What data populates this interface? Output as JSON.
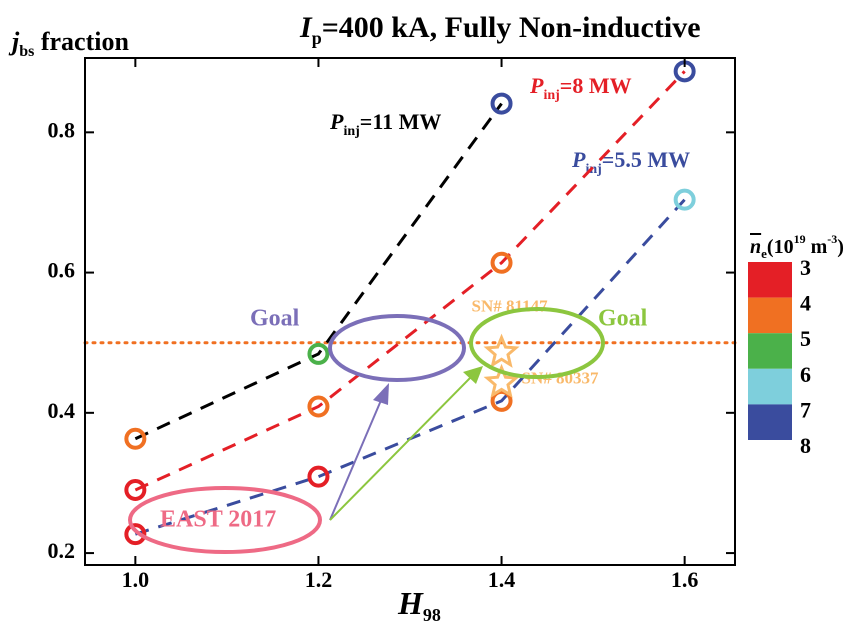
{
  "chart_data": {
    "type": "line",
    "title": [
      "I",
      "p",
      "=400 kA, Fully Non-inductive"
    ],
    "ylabel": [
      "j",
      "bs",
      " fraction"
    ],
    "xlabel": [
      "H",
      "98"
    ],
    "xlim": [
      0.945,
      1.655
    ],
    "ylim": [
      0.183,
      0.906
    ],
    "xticks": [
      {
        "value": 1,
        "label": "1.0"
      },
      {
        "value": 1.2,
        "label": "1.2"
      },
      {
        "value": 1.4,
        "label": "1.4"
      },
      {
        "value": 1.6,
        "label": "1.6"
      }
    ],
    "yticks": [
      0.2,
      0.4,
      0.6,
      0.8
    ],
    "hline": {
      "value": 0.5,
      "color": "#f07022"
    },
    "series": [
      {
        "label": [
          "P",
          "inj",
          "=11 MW"
        ],
        "color": "#000000",
        "x": [
          1.0,
          1.2,
          1.4
        ],
        "values": [
          0.363,
          0.484,
          0.841
        ],
        "marker_colors": [
          "#f07022",
          "#4bb14a",
          "#3a4c9e"
        ]
      },
      {
        "label": [
          "P",
          "inj",
          "=8 MW"
        ],
        "color": "#e41f26",
        "x": [
          1.0,
          1.2,
          1.4,
          1.6
        ],
        "values": [
          0.29,
          0.409,
          0.614,
          0.887
        ],
        "marker_colors": [
          "#e41f26",
          "#f07022",
          "#f07022",
          "#3a4c9e"
        ]
      },
      {
        "label": [
          "P",
          "inj",
          "=5.5 MW"
        ],
        "color": "#3a4c9e",
        "x": [
          1.0,
          1.2,
          1.4,
          1.6
        ],
        "values": [
          0.227,
          0.309,
          0.417,
          0.704
        ],
        "marker_colors": [
          "#e41f26",
          "#e41f26",
          "#f07022",
          "#7ecfdc"
        ]
      }
    ],
    "shots": {
      "labels": [
        "SN# 81147",
        "SN# 80337"
      ],
      "x": [
        1.4,
        1.4
      ],
      "values": [
        0.486,
        0.443
      ],
      "color": "#f9b96a"
    },
    "annotations": [
      "Goal",
      "Goal",
      "EAST 2017"
    ],
    "colorbar": {
      "title": [
        "n",
        "e",
        "(10",
        "19",
        " m",
        "-3",
        ")"
      ],
      "ticks": [
        3,
        4,
        5,
        6,
        7,
        8
      ],
      "colors": [
        "#e41f26",
        "#f07022",
        "#4bb14a",
        "#7ecfdc",
        "#3a4c9e"
      ]
    }
  }
}
